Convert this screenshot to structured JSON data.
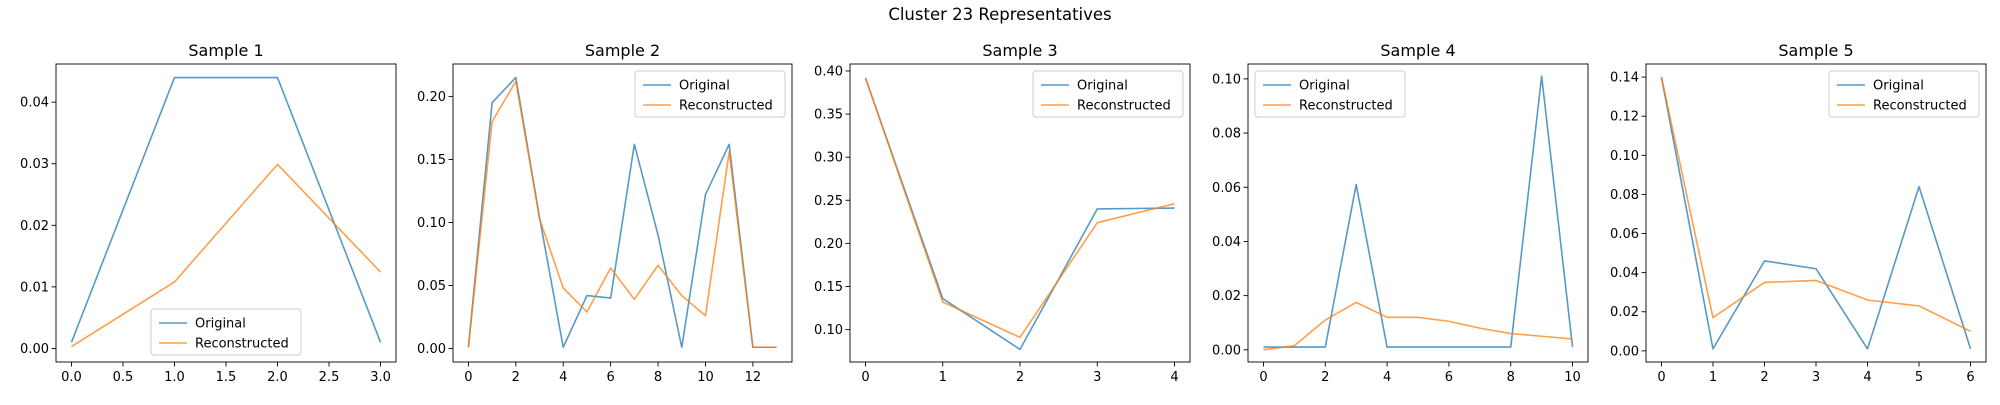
{
  "chart_data": {
    "suptitle": "Cluster 23 Representatives",
    "colors": {
      "original": "#1f77b4",
      "reconstructed": "#ff7f0e"
    },
    "panels": [
      {
        "type": "line",
        "title": "Sample 1",
        "legend": {
          "placement": "lower center",
          "entries": [
            "Original",
            "Reconstructed"
          ]
        },
        "xlim": [
          -0.15,
          3.15
        ],
        "ylim": [
          -0.0022,
          0.0462
        ],
        "xticks": [
          0.0,
          0.5,
          1.0,
          1.5,
          2.0,
          2.5,
          3.0
        ],
        "xtick_labels": [
          "0.0",
          "0.5",
          "1.0",
          "1.5",
          "2.0",
          "2.5",
          "3.0"
        ],
        "yticks": [
          0.0,
          0.01,
          0.02,
          0.03,
          0.04
        ],
        "ytick_labels": [
          "0.00",
          "0.01",
          "0.02",
          "0.03",
          "0.04"
        ],
        "x": [
          0,
          1,
          2,
          3
        ],
        "series": [
          {
            "name": "Original",
            "values": [
              0.001,
              0.044,
              0.044,
              0.001
            ]
          },
          {
            "name": "Reconstructed",
            "values": [
              0.0003,
              0.0108,
              0.0299,
              0.0124
            ]
          }
        ]
      },
      {
        "type": "line",
        "title": "Sample 2",
        "legend": {
          "placement": "upper right",
          "entries": [
            "Original",
            "Reconstructed"
          ]
        },
        "xlim": [
          -0.65,
          13.65
        ],
        "ylim": [
          -0.0107,
          0.2257
        ],
        "xticks": [
          0,
          2,
          4,
          6,
          8,
          10,
          12
        ],
        "xtick_labels": [
          "0",
          "2",
          "4",
          "6",
          "8",
          "10",
          "12"
        ],
        "yticks": [
          0.0,
          0.05,
          0.1,
          0.15,
          0.2
        ],
        "ytick_labels": [
          "0.00",
          "0.05",
          "0.10",
          "0.15",
          "0.20"
        ],
        "x": [
          0,
          1,
          2,
          3,
          4,
          5,
          6,
          7,
          8,
          9,
          10,
          11,
          12,
          13
        ],
        "series": [
          {
            "name": "Original",
            "values": [
              0.001,
              0.195,
              0.215,
              0.104,
              0.001,
              0.042,
              0.04,
              0.162,
              0.09,
              0.001,
              0.122,
              0.162,
              0.001,
              0.001
            ]
          },
          {
            "name": "Reconstructed",
            "values": [
              0.001,
              0.18,
              0.212,
              0.103,
              0.048,
              0.029,
              0.064,
              0.039,
              0.066,
              0.042,
              0.026,
              0.156,
              0.001,
              0.001
            ]
          }
        ]
      },
      {
        "type": "line",
        "title": "Sample 3",
        "legend": {
          "placement": "upper right",
          "entries": [
            "Original",
            "Reconstructed"
          ]
        },
        "xlim": [
          -0.2,
          4.2
        ],
        "ylim": [
          0.0624,
          0.4081
        ],
        "xticks": [
          0,
          1,
          2,
          3,
          4
        ],
        "xtick_labels": [
          "0",
          "1",
          "2",
          "3",
          "4"
        ],
        "yticks": [
          0.1,
          0.15,
          0.2,
          0.25,
          0.3,
          0.35,
          0.4
        ],
        "ytick_labels": [
          "0.10",
          "0.15",
          "0.20",
          "0.25",
          "0.30",
          "0.35",
          "0.40"
        ],
        "x": [
          0,
          1,
          2,
          3,
          4
        ],
        "series": [
          {
            "name": "Original",
            "values": [
              0.392,
              0.136,
              0.077,
              0.24,
              0.241
            ]
          },
          {
            "name": "Reconstructed",
            "values": [
              0.392,
              0.132,
              0.091,
              0.224,
              0.246
            ]
          }
        ]
      },
      {
        "type": "line",
        "title": "Sample 4",
        "legend": {
          "placement": "upper left",
          "entries": [
            "Original",
            "Reconstructed"
          ]
        },
        "xlim": [
          -0.5,
          10.5
        ],
        "ylim": [
          -0.0045,
          0.1055
        ],
        "xticks": [
          0,
          2,
          4,
          6,
          8,
          10
        ],
        "xtick_labels": [
          "0",
          "2",
          "4",
          "6",
          "8",
          "10"
        ],
        "yticks": [
          0.0,
          0.02,
          0.04,
          0.06,
          0.08,
          0.1
        ],
        "ytick_labels": [
          "0.00",
          "0.02",
          "0.04",
          "0.06",
          "0.08",
          "0.10"
        ],
        "x": [
          0,
          1,
          2,
          3,
          4,
          5,
          6,
          7,
          8,
          9,
          10
        ],
        "series": [
          {
            "name": "Original",
            "values": [
              0.001,
              0.001,
              0.001,
              0.061,
              0.001,
              0.001,
              0.001,
              0.001,
              0.001,
              0.101,
              0.001
            ]
          },
          {
            "name": "Reconstructed",
            "values": [
              0.0,
              0.0015,
              0.011,
              0.0175,
              0.012,
              0.012,
              0.0105,
              0.008,
              0.006,
              0.005,
              0.004
            ]
          }
        ]
      },
      {
        "type": "line",
        "title": "Sample 5",
        "legend": {
          "placement": "upper right",
          "entries": [
            "Original",
            "Reconstructed"
          ]
        },
        "xlim": [
          -0.3,
          6.3
        ],
        "ylim": [
          -0.0057,
          0.1467
        ],
        "xticks": [
          0,
          1,
          2,
          3,
          4,
          5,
          6
        ],
        "xtick_labels": [
          "0",
          "1",
          "2",
          "3",
          "4",
          "5",
          "6"
        ],
        "yticks": [
          0.0,
          0.02,
          0.04,
          0.06,
          0.08,
          0.1,
          0.12,
          0.14
        ],
        "ytick_labels": [
          "0.00",
          "0.02",
          "0.04",
          "0.06",
          "0.08",
          "0.10",
          "0.12",
          "0.14"
        ],
        "x": [
          0,
          1,
          2,
          3,
          4,
          5,
          6
        ],
        "series": [
          {
            "name": "Original",
            "values": [
              0.14,
              0.001,
              0.046,
              0.042,
              0.001,
              0.084,
              0.001
            ]
          },
          {
            "name": "Reconstructed",
            "values": [
              0.14,
              0.017,
              0.035,
              0.036,
              0.026,
              0.023,
              0.01
            ]
          }
        ]
      }
    ]
  }
}
